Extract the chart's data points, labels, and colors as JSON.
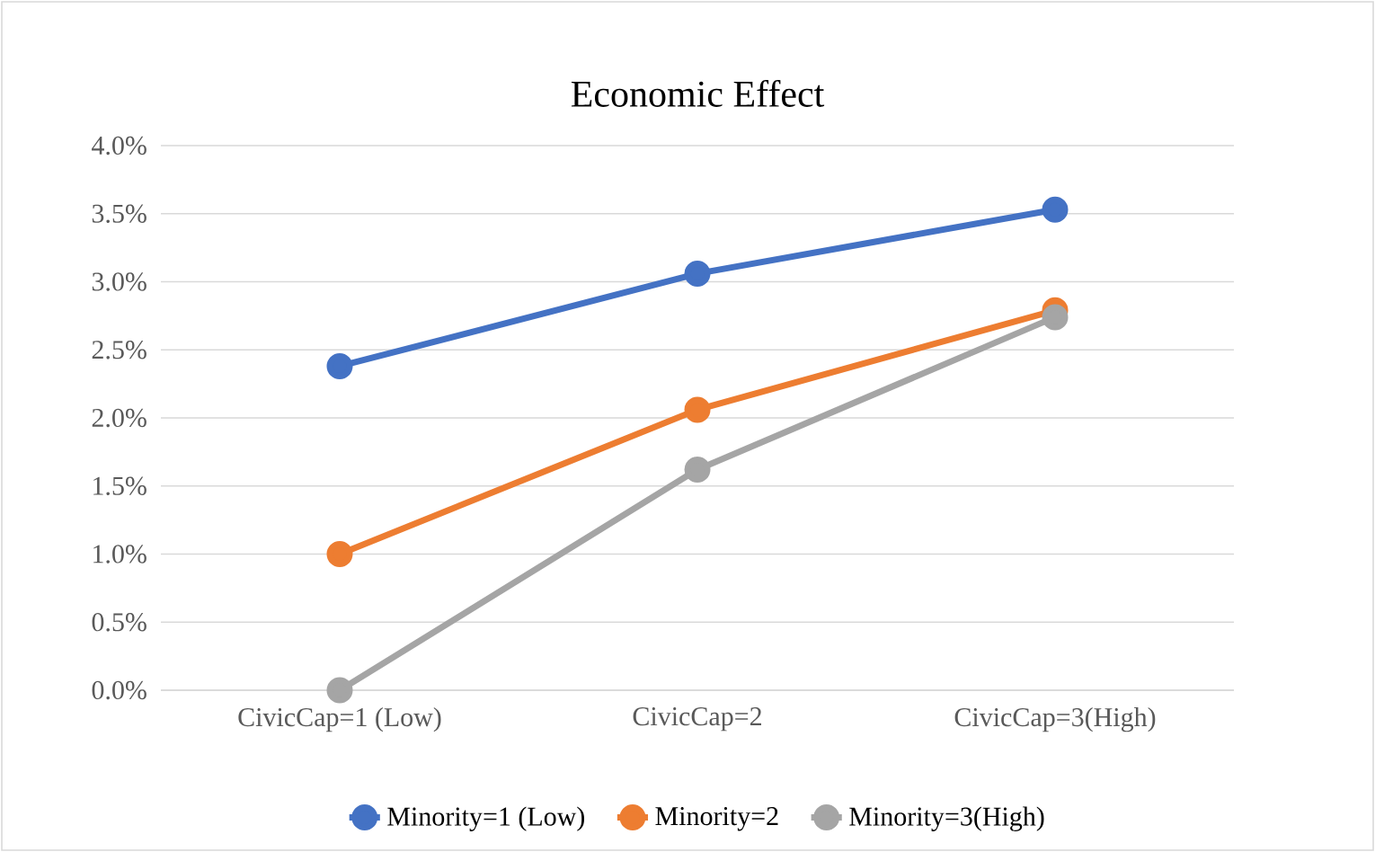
{
  "chart_data": {
    "type": "line",
    "title": "Economic Effect",
    "categories": [
      "CivicCap=1 (Low)",
      "CivicCap=2",
      "CivicCap=3(High)"
    ],
    "series": [
      {
        "name": "Minority=1 (Low)",
        "color": "#4472c4",
        "values": [
          2.38,
          3.06,
          3.53
        ]
      },
      {
        "name": "Minority=2",
        "color": "#ed7d31",
        "values": [
          1.0,
          2.06,
          2.79
        ]
      },
      {
        "name": "Minority=3(High)",
        "color": "#a5a5a5",
        "values": [
          0.0,
          1.62,
          2.74
        ]
      }
    ],
    "ylim": [
      0,
      4
    ],
    "yticks": [
      {
        "value": 0,
        "label": "0.0%"
      },
      {
        "value": 0.5,
        "label": "0.5%"
      },
      {
        "value": 1,
        "label": "1.0%"
      },
      {
        "value": 1.5,
        "label": "1.5%"
      },
      {
        "value": 2,
        "label": "2.0%"
      },
      {
        "value": 2.5,
        "label": "2.5%"
      },
      {
        "value": 3,
        "label": "3.0%"
      },
      {
        "value": 3.5,
        "label": "3.5%"
      },
      {
        "value": 4,
        "label": "4.0%"
      }
    ],
    "grid": "y",
    "legend": "bottom",
    "marker": "circle",
    "line_style": "solid"
  }
}
